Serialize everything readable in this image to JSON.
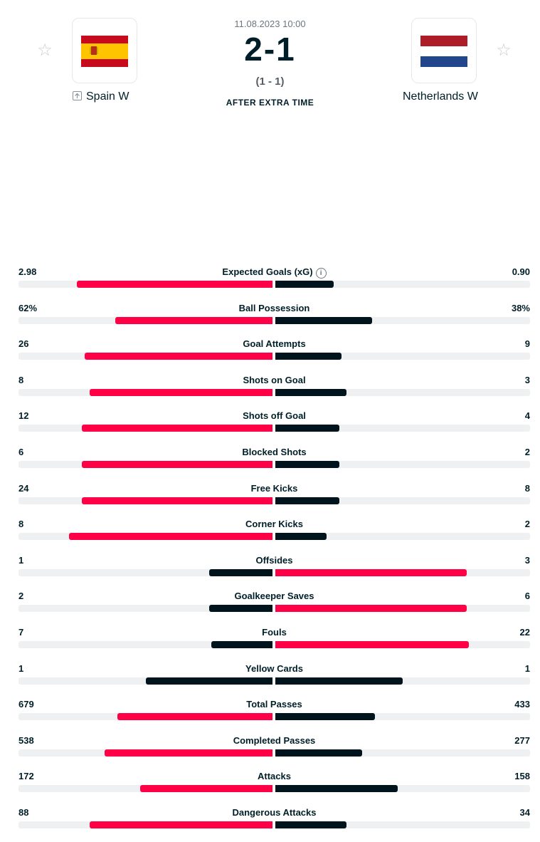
{
  "match": {
    "date": "11.08.2023 10:00",
    "score": "2-1",
    "half_time": "(1 - 1)",
    "status": "AFTER EXTRA TIME",
    "home": {
      "name": "Spain W"
    },
    "away": {
      "name": "Netherlands W"
    }
  },
  "colors": {
    "winner_bar": "#ff0046",
    "other_bar": "#00141e",
    "track": "#eef0f1"
  },
  "stats": [
    {
      "label": "Expected Goals (xG)",
      "home": "2.98",
      "away": "0.90",
      "home_share": 0.77,
      "away_share": 0.23,
      "info": true
    },
    {
      "label": "Ball Possession",
      "home": "62%",
      "away": "38%",
      "home_share": 0.62,
      "away_share": 0.38
    },
    {
      "label": "Goal Attempts",
      "home": "26",
      "away": "9",
      "home_share": 0.74,
      "away_share": 0.26
    },
    {
      "label": "Shots on Goal",
      "home": "8",
      "away": "3",
      "home_share": 0.72,
      "away_share": 0.28
    },
    {
      "label": "Shots off Goal",
      "home": "12",
      "away": "4",
      "home_share": 0.75,
      "away_share": 0.25
    },
    {
      "label": "Blocked Shots",
      "home": "6",
      "away": "2",
      "home_share": 0.75,
      "away_share": 0.25
    },
    {
      "label": "Free Kicks",
      "home": "24",
      "away": "8",
      "home_share": 0.75,
      "away_share": 0.25
    },
    {
      "label": "Corner Kicks",
      "home": "8",
      "away": "2",
      "home_share": 0.8,
      "away_share": 0.2
    },
    {
      "label": "Offsides",
      "home": "1",
      "away": "3",
      "home_share": 0.25,
      "away_share": 0.75
    },
    {
      "label": "Goalkeeper Saves",
      "home": "2",
      "away": "6",
      "home_share": 0.25,
      "away_share": 0.75
    },
    {
      "label": "Fouls",
      "home": "7",
      "away": "22",
      "home_share": 0.24,
      "away_share": 0.76
    },
    {
      "label": "Yellow Cards",
      "home": "1",
      "away": "1",
      "home_share": 0.5,
      "away_share": 0.5,
      "tie": true
    },
    {
      "label": "Total Passes",
      "home": "679",
      "away": "433",
      "home_share": 0.61,
      "away_share": 0.39
    },
    {
      "label": "Completed Passes",
      "home": "538",
      "away": "277",
      "home_share": 0.66,
      "away_share": 0.34
    },
    {
      "label": "Attacks",
      "home": "172",
      "away": "158",
      "home_share": 0.52,
      "away_share": 0.48
    },
    {
      "label": "Dangerous Attacks",
      "home": "88",
      "away": "34",
      "home_share": 0.72,
      "away_share": 0.28
    }
  ]
}
